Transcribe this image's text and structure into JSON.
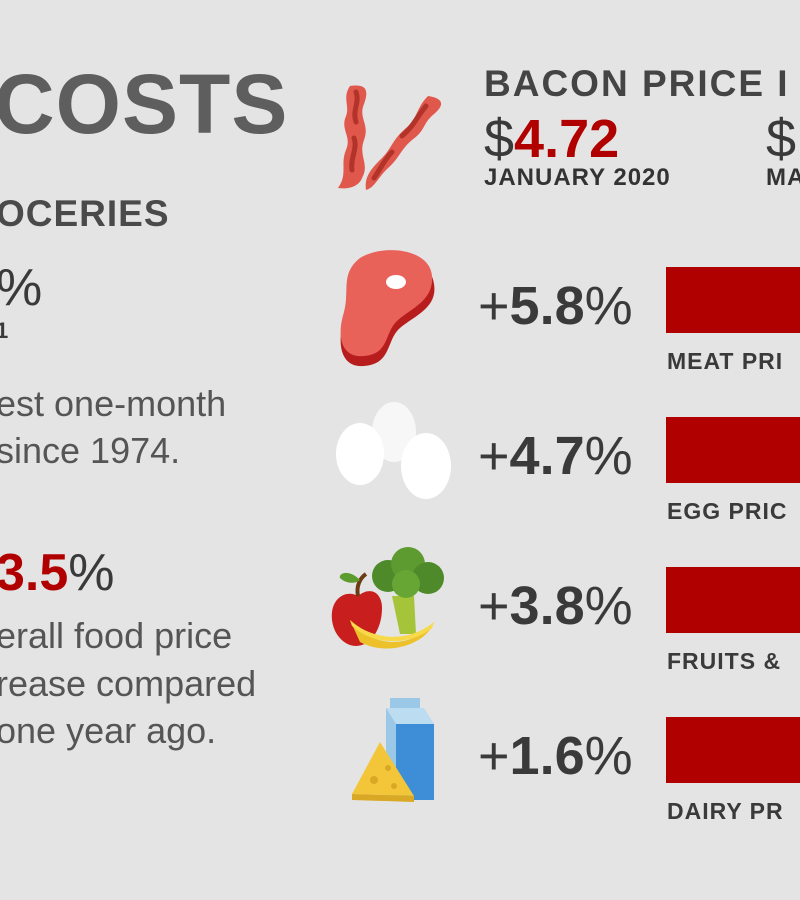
{
  "left": {
    "title": "COSTS",
    "subhead": "OCERIES",
    "stat_fragment": "%",
    "stat_date_fragment": "1",
    "line1": "est one-month",
    "line2": " since 1974.",
    "overall_value": "3.5",
    "overall_unit": "%",
    "overall_line1": "erall food price",
    "overall_line2": "rease compared",
    "overall_line3": "one year ago."
  },
  "bacon": {
    "title": "BACON PRICE I",
    "price1_currency": "$",
    "price1_value": "4.72",
    "price1_date": "JANUARY 2020",
    "price2_currency": "$",
    "price2_date": "MA"
  },
  "rows": [
    {
      "sign": "+",
      "value": "5.8",
      "unit": "%",
      "label": "MEAT PRI",
      "icon": "steak-icon"
    },
    {
      "sign": "+",
      "value": "4.7",
      "unit": "%",
      "label": "EGG PRIC",
      "icon": "eggs-icon"
    },
    {
      "sign": "+",
      "value": "3.8",
      "unit": "%",
      "label": "FRUITS &",
      "icon": "produce-icon"
    },
    {
      "sign": "+",
      "value": "1.6",
      "unit": "%",
      "label": "DAIRY PR",
      "icon": "dairy-icon"
    }
  ],
  "colors": {
    "accent": "#b00000",
    "background": "#e4e4e4",
    "text": "#3e3e3e"
  }
}
